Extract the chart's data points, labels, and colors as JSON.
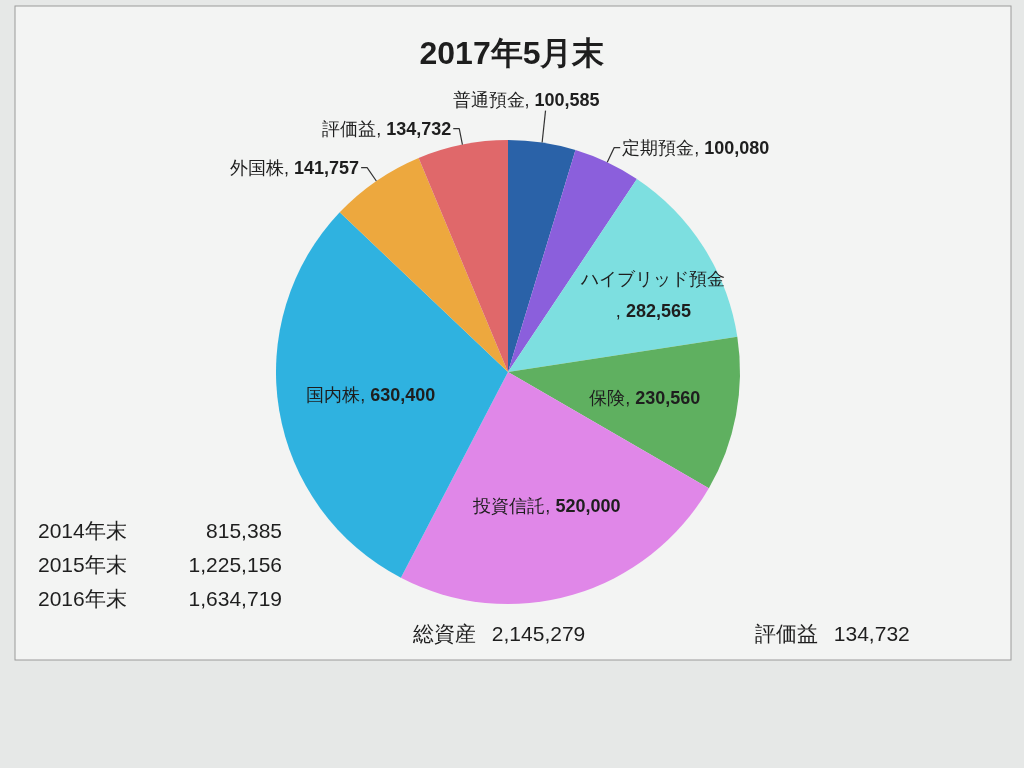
{
  "chart_data": {
    "type": "pie",
    "title": "2017年5月末",
    "categories": [
      "普通預金",
      "定期預金",
      "ハイブリッド預金",
      "保険",
      "投資信託",
      "国内株",
      "外国株",
      "評価益"
    ],
    "values": [
      100585,
      100080,
      282565,
      230560,
      520000,
      630400,
      141757,
      134732
    ],
    "colors": [
      "#2a62a8",
      "#8b5fdc",
      "#7ddfe0",
      "#5fb060",
      "#e087e8",
      "#2fb2e0",
      "#eda83e",
      "#e0686a"
    ],
    "value_labels": [
      ", 100,585",
      ", 100,080",
      ", 282,565",
      ", 230,560",
      ", 520,000",
      ", 630,400",
      ", 141,757",
      ", 134,732"
    ],
    "annotations": [
      "2014年末 815,385",
      "2015年末 1,225,156",
      "2016年末 1,634,719",
      "総資産 2,145,279",
      "評価益 134,732"
    ]
  }
}
